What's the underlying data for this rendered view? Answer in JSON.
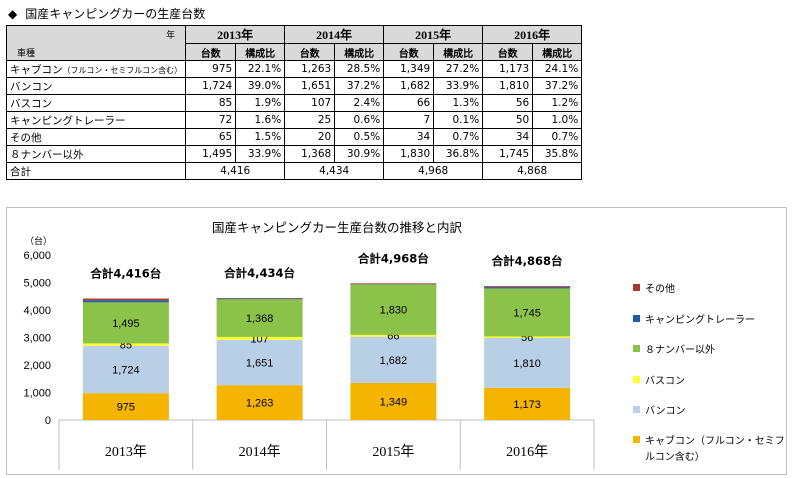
{
  "header": {
    "marker": "◆",
    "title": "国産キャンピングカーの生産台数"
  },
  "table": {
    "corner_year": "年",
    "corner_type": "車種",
    "years": [
      "2013年",
      "2014年",
      "2015年",
      "2016年"
    ],
    "sub_units": "台数",
    "sub_ratio": "構成比",
    "rows": [
      {
        "label": "キャブコン",
        "note": "（フルコン・セミフルコン含む）",
        "cells": [
          "975",
          "22.1%",
          "1,263",
          "28.5%",
          "1,349",
          "27.2%",
          "1,173",
          "24.1%"
        ]
      },
      {
        "label": "バンコン",
        "note": "",
        "cells": [
          "1,724",
          "39.0%",
          "1,651",
          "37.2%",
          "1,682",
          "33.9%",
          "1,810",
          "37.2%"
        ]
      },
      {
        "label": "バスコン",
        "note": "",
        "cells": [
          "85",
          "1.9%",
          "107",
          "2.4%",
          "66",
          "1.3%",
          "56",
          "1.2%"
        ]
      },
      {
        "label": "キャンピングトレーラー",
        "note": "",
        "cells": [
          "72",
          "1.6%",
          "25",
          "0.6%",
          "7",
          "0.1%",
          "50",
          "1.0%"
        ]
      },
      {
        "label": "その他",
        "note": "",
        "cells": [
          "65",
          "1.5%",
          "20",
          "0.5%",
          "34",
          "0.7%",
          "34",
          "0.7%"
        ]
      },
      {
        "label": "８ナンバー以外",
        "note": "",
        "cells": [
          "1,495",
          "33.9%",
          "1,368",
          "30.9%",
          "1,830",
          "36.8%",
          "1,745",
          "35.8%"
        ]
      }
    ],
    "total_label": "合計",
    "totals": [
      "4,416",
      "4,434",
      "4,968",
      "4,868"
    ]
  },
  "chart_data": {
    "type": "bar",
    "stacked": true,
    "title": "国産キャンピングカー生産台数の推移と内訳",
    "y_unit": "（台）",
    "ylim": [
      0,
      6000
    ],
    "yticks": [
      0,
      1000,
      2000,
      3000,
      4000,
      5000,
      6000
    ],
    "ytick_labels": [
      "0",
      "1,000",
      "2,000",
      "3,000",
      "4,000",
      "5,000",
      "6,000"
    ],
    "categories": [
      "2013年",
      "2014年",
      "2015年",
      "2016年"
    ],
    "totals_labels": [
      "合計4,416台",
      "合計4,434台",
      "合計4,968台",
      "合計4,868台"
    ],
    "series": [
      {
        "name": "キャブコン（フルコン・セミフルコン含む）",
        "legend_lines": [
          "キャブコン（フルコン・セミフ",
          "ルコン含む）"
        ],
        "color": "#f5b400",
        "values": [
          975,
          1263,
          1349,
          1173
        ],
        "labels": [
          "975",
          "1,263",
          "1,349",
          "1,173"
        ]
      },
      {
        "name": "バンコン",
        "legend_lines": [
          "バンコン"
        ],
        "color": "#b8cfe6",
        "values": [
          1724,
          1651,
          1682,
          1810
        ],
        "labels": [
          "1,724",
          "1,651",
          "1,682",
          "1,810"
        ]
      },
      {
        "name": "バスコン",
        "legend_lines": [
          "バスコン"
        ],
        "color": "#ffff33",
        "values": [
          85,
          107,
          66,
          56
        ],
        "labels": [
          "85",
          "107",
          "66",
          "56"
        ]
      },
      {
        "name": "８ナンバー以外",
        "legend_lines": [
          "８ナンバー以外"
        ],
        "color": "#8bc34a",
        "values": [
          1495,
          1368,
          1830,
          1745
        ],
        "labels": [
          "1,495",
          "1,368",
          "1,830",
          "1,745"
        ]
      },
      {
        "name": "キャンピングトレーラー",
        "legend_lines": [
          "キャンピングトレーラー"
        ],
        "color": "#1f5fa8",
        "values": [
          72,
          25,
          7,
          50
        ],
        "labels": []
      },
      {
        "name": "その他",
        "legend_lines": [
          "その他"
        ],
        "color": "#a33b2c",
        "values": [
          65,
          20,
          34,
          34
        ],
        "labels": []
      }
    ],
    "legend_order": [
      5,
      4,
      3,
      2,
      1,
      0
    ],
    "legend_position": "right"
  }
}
